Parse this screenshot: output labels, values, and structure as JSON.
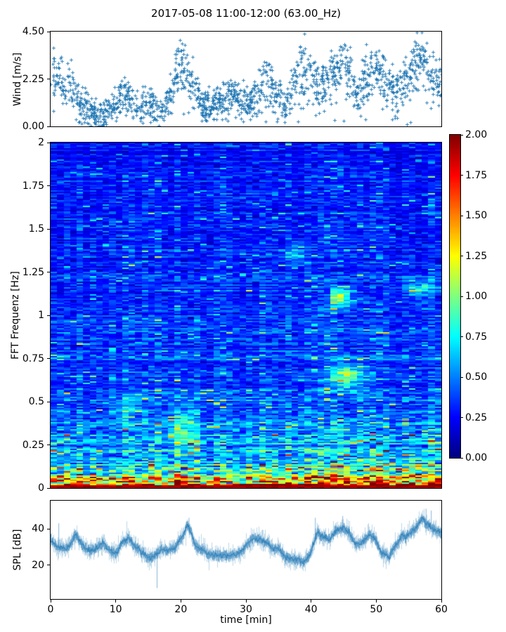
{
  "title": "2017-05-08 11:00-12:00 (63.00_Hz)",
  "colors": {
    "series_blue": "#1f77b4",
    "axis": "#000000",
    "background": "#ffffff"
  },
  "panels": {
    "wind": {
      "ylabel": "Wind [m/s]",
      "yticks": [
        "0.00",
        "2.25",
        "4.50"
      ],
      "ylim": [
        0,
        4.5
      ]
    },
    "spectrogram": {
      "ylabel": "FFT Frequenz [Hz]",
      "yticks": [
        "0",
        "0.25",
        "0.5",
        "0.75",
        "1",
        "1.25",
        "1.5",
        "1.75",
        "2"
      ],
      "ylim": [
        0,
        2
      ]
    },
    "spl": {
      "ylabel": "SPL [dB]",
      "yticks": [
        "20",
        "40"
      ],
      "ylim": [
        1.5,
        55.4
      ]
    },
    "xaxis": {
      "label": "time [min]",
      "ticks": [
        "0",
        "10",
        "20",
        "30",
        "40",
        "50",
        "60"
      ],
      "lim": [
        0,
        60
      ]
    }
  },
  "colorbar": {
    "ticks": [
      "0.00",
      "0.25",
      "0.50",
      "0.75",
      "1.00",
      "1.25",
      "1.50",
      "1.75",
      "2.00"
    ],
    "lim": [
      0,
      2
    ],
    "colormap": "jet"
  },
  "chart_data": [
    {
      "type": "scatter",
      "name": "wind_speed",
      "ylabel": "Wind [m/s]",
      "x_range": [
        0,
        60
      ],
      "x_unit": "min",
      "ylim": [
        0,
        4.5
      ],
      "marker": "plus",
      "color": "#1f77b4",
      "n_points": 1600,
      "seed": 1234,
      "spread_base": 0.26,
      "spread_slope": 0.13,
      "low_outlier_prob": 0.07,
      "mean_by_minute": [
        2.8,
        2.4,
        1.9,
        2.1,
        1.6,
        1.1,
        0.8,
        0.6,
        0.6,
        0.8,
        1.2,
        1.6,
        1.3,
        1.0,
        1.0,
        1.2,
        1.0,
        0.8,
        1.2,
        2.2,
        3.2,
        2.7,
        1.8,
        1.2,
        1.0,
        1.2,
        1.0,
        1.3,
        1.5,
        1.2,
        1.3,
        1.2,
        1.8,
        2.2,
        1.8,
        1.4,
        1.0,
        1.6,
        2.5,
        2.9,
        2.3,
        1.7,
        2.0,
        2.5,
        2.8,
        3.1,
        2.3,
        1.4,
        2.2,
        2.8,
        2.6,
        2.4,
        2.0,
        1.6,
        2.0,
        2.6,
        3.0,
        3.2,
        2.8,
        2.4,
        2.3
      ]
    },
    {
      "type": "heatmap",
      "name": "fft_spectrogram",
      "ylabel": "FFT Frequenz [Hz]",
      "colormap": "jet",
      "clim": [
        0,
        2
      ],
      "ylim": [
        0,
        2
      ],
      "x_range": [
        0,
        60
      ],
      "time_bins": 60,
      "freq_bins": 246,
      "seed": 99,
      "wind_coupling": 0.5,
      "bottom_band_hz": 0.018,
      "bottom_band_value": 1.95,
      "freq_profile": [
        [
          0,
          2.0
        ],
        [
          0.015,
          1.95
        ],
        [
          0.04,
          1.4
        ],
        [
          0.08,
          0.95
        ],
        [
          0.15,
          0.72
        ],
        [
          0.25,
          0.56
        ],
        [
          0.4,
          0.45
        ],
        [
          0.6,
          0.38
        ],
        [
          1.0,
          0.33
        ],
        [
          1.5,
          0.3
        ],
        [
          2.0,
          0.27
        ]
      ],
      "hotspots": [
        {
          "t": 44.5,
          "f": 1.1,
          "amp": 0.85,
          "dt": 1.2,
          "df": 0.035
        },
        {
          "t": 45.5,
          "f": 0.65,
          "amp": 0.6,
          "dt": 2.0,
          "df": 0.05
        },
        {
          "t": 20.5,
          "f": 0.35,
          "amp": 0.45,
          "dt": 1.5,
          "df": 0.08
        },
        {
          "t": 57.0,
          "f": 1.15,
          "amp": 0.45,
          "dt": 1.5,
          "df": 0.04
        },
        {
          "t": 37.5,
          "f": 1.35,
          "amp": 0.35,
          "dt": 1.0,
          "df": 0.04
        },
        {
          "t": 12.0,
          "f": 0.45,
          "amp": 0.35,
          "dt": 1.2,
          "df": 0.06
        }
      ]
    },
    {
      "type": "line",
      "name": "spl",
      "ylabel": "SPL [dB]",
      "color": "#1f77b4",
      "ylim": [
        1.5,
        55.4
      ],
      "x_range": [
        0,
        60
      ],
      "seed": 7,
      "mean_by_minute": [
        35,
        30,
        28,
        30,
        33,
        29,
        26,
        28,
        31,
        28,
        27,
        33,
        35,
        30,
        27,
        25,
        26,
        27,
        28,
        30,
        35,
        43,
        33,
        28,
        26,
        27,
        28,
        26,
        27,
        28,
        30,
        33,
        34,
        32,
        30,
        31,
        28,
        27,
        26,
        25,
        28,
        38,
        35,
        33,
        38,
        40,
        38,
        33,
        36,
        39,
        34,
        28,
        25,
        30,
        35,
        37,
        40,
        46,
        44,
        40,
        37
      ],
      "spikes": [
        {
          "t": 1.2,
          "value": 43
        },
        {
          "t": 16.3,
          "value": 7.5
        },
        {
          "t": 21.2,
          "value": 46
        },
        {
          "t": 40.6,
          "value": 46
        },
        {
          "t": 44.8,
          "value": 47
        },
        {
          "t": 57.6,
          "value": 51
        },
        {
          "t": 58.4,
          "value": 50
        }
      ]
    }
  ]
}
